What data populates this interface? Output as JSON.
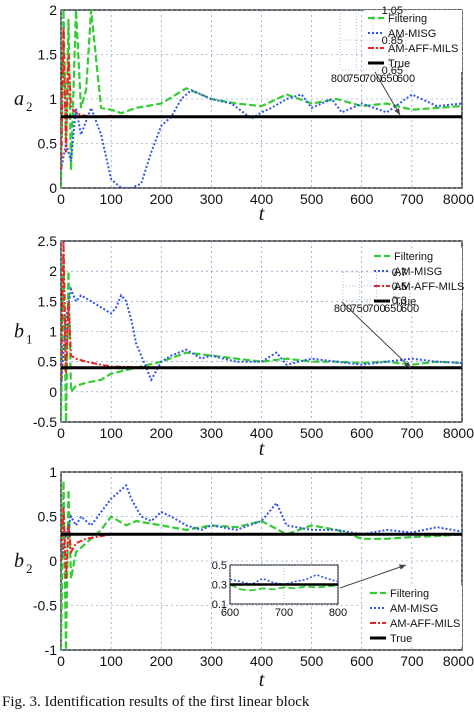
{
  "caption": "Fig. 3. Identification results of the first linear block",
  "colors": {
    "filtering": "#33cc33",
    "am_misg": "#3355ee",
    "am_aff_mils": "#ee2222",
    "true": "#000000",
    "grid": "#6688bb"
  },
  "chart_data": [
    {
      "type": "line",
      "ylabel": "a",
      "ylabel_sub": "2",
      "xlabel": "t",
      "xlim": [
        0,
        800
      ],
      "ylim": [
        0,
        2
      ],
      "xticks": [
        "0",
        "100",
        "200",
        "300",
        "400",
        "500",
        "600",
        "700",
        "8000"
      ],
      "yticks": [
        "0",
        "0.5",
        "1",
        "1.5",
        "2"
      ],
      "legend": [
        "Filtering",
        "AM-MISG",
        "AM-AFF-MILS",
        "True"
      ],
      "true_value": 0.8,
      "series": [
        {
          "name": "Filtering",
          "x": [
            0,
            5,
            10,
            15,
            20,
            30,
            40,
            50,
            60,
            80,
            100,
            120,
            150,
            200,
            250,
            300,
            350,
            400,
            450,
            500,
            550,
            600,
            650,
            700,
            750,
            800
          ],
          "y": [
            0,
            2.0,
            0.5,
            1.9,
            0.2,
            2.0,
            0.9,
            1.1,
            2.0,
            0.9,
            0.88,
            0.84,
            0.9,
            0.95,
            1.12,
            1.0,
            0.95,
            0.92,
            1.05,
            0.95,
            1.0,
            0.92,
            0.95,
            0.88,
            0.9,
            0.92
          ]
        },
        {
          "name": "AM-MISG",
          "x": [
            0,
            10,
            20,
            30,
            40,
            60,
            80,
            100,
            120,
            140,
            160,
            180,
            200,
            220,
            240,
            260,
            300,
            340,
            380,
            400,
            420,
            450,
            480,
            500,
            540,
            560,
            600,
            650,
            700,
            750,
            800
          ],
          "y": [
            0.2,
            0.5,
            0.3,
            0.9,
            0.6,
            0.9,
            0.6,
            0.1,
            0.0,
            0.0,
            0.05,
            0.4,
            0.7,
            0.8,
            1.0,
            1.1,
            1.0,
            0.95,
            0.78,
            0.85,
            0.9,
            1.0,
            1.05,
            0.9,
            1.0,
            0.85,
            0.95,
            0.85,
            1.05,
            0.92,
            0.95
          ]
        },
        {
          "name": "AM-AFF-MILS",
          "x": [
            0,
            5,
            10,
            15,
            20,
            30,
            40,
            60,
            100,
            200,
            300,
            400,
            500,
            600,
            700,
            800
          ],
          "y": [
            0.2,
            1.8,
            0.4,
            1.5,
            0.9,
            0.85,
            0.82,
            0.8,
            0.81,
            0.8,
            0.8,
            0.8,
            0.8,
            0.8,
            0.8,
            0.8
          ]
        },
        {
          "name": "True",
          "x": [
            0,
            800
          ],
          "y": [
            0.8,
            0.8
          ]
        }
      ],
      "inset": {
        "xlim": [
          600,
          800
        ],
        "ylim": [
          0.65,
          1.05
        ],
        "xticks": [
          "600",
          "650",
          "700",
          "750",
          "800"
        ],
        "yticks": [
          "0.65",
          "0.85",
          "1.05"
        ],
        "series": [
          {
            "name": "Filtering",
            "x": [
              600,
              620,
              640,
              660,
              680,
              700,
              720,
              740,
              760,
              780,
              800
            ],
            "y": [
              0.85,
              0.88,
              0.9,
              0.87,
              0.86,
              0.88,
              0.9,
              0.87,
              0.88,
              0.86,
              0.88
            ]
          },
          {
            "name": "AM-MISG",
            "x": [
              600,
              620,
              640,
              660,
              680,
              700,
              720,
              740,
              760,
              780,
              800
            ],
            "y": [
              0.95,
              0.98,
              1.0,
              0.93,
              0.96,
              0.98,
              0.9,
              0.92,
              0.93,
              0.94,
              0.93
            ]
          },
          {
            "name": "AM-AFF-MILS",
            "x": [
              600,
              800
            ],
            "y": [
              0.8,
              0.8
            ]
          },
          {
            "name": "True",
            "x": [
              600,
              800
            ],
            "y": [
              0.8,
              0.8
            ]
          }
        ]
      }
    },
    {
      "type": "line",
      "ylabel": "b",
      "ylabel_sub": "1",
      "xlabel": "t",
      "xlim": [
        0,
        800
      ],
      "ylim": [
        -0.5,
        2.5
      ],
      "xticks": [
        "0",
        "100",
        "200",
        "300",
        "400",
        "500",
        "600",
        "700",
        "8000"
      ],
      "yticks": [
        "-0.5",
        "0",
        "0.5",
        "1",
        "1.5",
        "2",
        "2.5"
      ],
      "legend": [
        "Filtering",
        "AM-MISG",
        "AM-AFF-MILS",
        "True"
      ],
      "true_value": 0.4,
      "series": [
        {
          "name": "Filtering",
          "x": [
            0,
            5,
            10,
            15,
            20,
            30,
            50,
            80,
            100,
            150,
            200,
            250,
            300,
            350,
            400,
            450,
            500,
            550,
            600,
            650,
            700,
            750,
            800
          ],
          "y": [
            -0.5,
            2.3,
            -0.5,
            2.0,
            0.0,
            0.1,
            0.15,
            0.2,
            0.3,
            0.4,
            0.5,
            0.65,
            0.6,
            0.55,
            0.5,
            0.55,
            0.5,
            0.5,
            0.48,
            0.5,
            0.45,
            0.5,
            0.48
          ]
        },
        {
          "name": "AM-MISG",
          "x": [
            0,
            10,
            20,
            30,
            40,
            60,
            80,
            100,
            110,
            120,
            130,
            140,
            150,
            160,
            180,
            200,
            220,
            250,
            280,
            300,
            350,
            400,
            430,
            450,
            500,
            550,
            600,
            650,
            700,
            750,
            800
          ],
          "y": [
            0.1,
            1.2,
            1.7,
            1.5,
            1.6,
            1.5,
            1.4,
            1.3,
            1.4,
            1.6,
            1.5,
            1.2,
            0.8,
            0.6,
            0.2,
            0.5,
            0.6,
            0.7,
            0.55,
            0.6,
            0.5,
            0.5,
            0.65,
            0.45,
            0.55,
            0.5,
            0.45,
            0.5,
            0.55,
            0.5,
            0.48
          ]
        },
        {
          "name": "AM-AFF-MILS",
          "x": [
            0,
            5,
            10,
            15,
            20,
            30,
            50,
            80,
            100,
            150,
            200,
            300,
            400,
            500,
            600,
            700,
            800
          ],
          "y": [
            0.2,
            2.5,
            0.3,
            1.5,
            0.6,
            0.55,
            0.5,
            0.45,
            0.42,
            0.41,
            0.4,
            0.4,
            0.4,
            0.4,
            0.4,
            0.4,
            0.4
          ]
        },
        {
          "name": "True",
          "x": [
            0,
            800
          ],
          "y": [
            0.4,
            0.4
          ]
        }
      ],
      "inset": {
        "xlim": [
          600,
          800
        ],
        "ylim": [
          0.3,
          0.7
        ],
        "xticks": [
          "600",
          "650",
          "700",
          "750",
          "800"
        ],
        "yticks": [
          "0.3",
          "0.5",
          "0.7"
        ],
        "series": [
          {
            "name": "Filtering",
            "x": [
              600,
              620,
              640,
              660,
              680,
              700,
              720,
              740,
              760,
              780,
              800
            ],
            "y": [
              0.52,
              0.48,
              0.47,
              0.5,
              0.48,
              0.45,
              0.5,
              0.47,
              0.48,
              0.5,
              0.52
            ]
          },
          {
            "name": "AM-MISG",
            "x": [
              600,
              620,
              640,
              660,
              680,
              700,
              720,
              740,
              750,
              760,
              780,
              800
            ],
            "y": [
              0.55,
              0.5,
              0.48,
              0.52,
              0.5,
              0.45,
              0.52,
              0.48,
              0.65,
              0.55,
              0.5,
              0.55
            ]
          },
          {
            "name": "AM-AFF-MILS",
            "x": [
              600,
              800
            ],
            "y": [
              0.4,
              0.4
            ]
          },
          {
            "name": "True",
            "x": [
              600,
              800
            ],
            "y": [
              0.4,
              0.4
            ]
          }
        ]
      }
    },
    {
      "type": "line",
      "ylabel": "b",
      "ylabel_sub": "2",
      "xlabel": "t",
      "xlim": [
        0,
        800
      ],
      "ylim": [
        -1,
        1
      ],
      "xticks": [
        "0",
        "100",
        "200",
        "300",
        "400",
        "500",
        "600",
        "700",
        "8000"
      ],
      "yticks": [
        "-1",
        "-0.5",
        "0",
        "0.5",
        "1"
      ],
      "legend": [
        "Filtering",
        "AM-MISG",
        "AM-AFF-MILS",
        "True"
      ],
      "true_value": 0.3,
      "series": [
        {
          "name": "Filtering",
          "x": [
            0,
            5,
            10,
            15,
            20,
            30,
            50,
            80,
            100,
            130,
            150,
            200,
            250,
            300,
            350,
            400,
            450,
            500,
            550,
            600,
            650,
            700,
            750,
            800
          ],
          "y": [
            -1.0,
            0.9,
            -1.0,
            0.8,
            -0.2,
            0.1,
            0.2,
            0.35,
            0.5,
            0.4,
            0.45,
            0.4,
            0.35,
            0.4,
            0.38,
            0.45,
            0.3,
            0.4,
            0.35,
            0.25,
            0.25,
            0.27,
            0.28,
            0.3
          ]
        },
        {
          "name": "AM-MISG",
          "x": [
            0,
            10,
            20,
            30,
            40,
            60,
            80,
            100,
            120,
            130,
            140,
            160,
            180,
            200,
            220,
            250,
            280,
            300,
            350,
            400,
            430,
            450,
            500,
            550,
            600,
            650,
            700,
            750,
            800
          ],
          "y": [
            0.0,
            0.3,
            0.5,
            0.4,
            0.5,
            0.4,
            0.55,
            0.7,
            0.8,
            0.85,
            0.7,
            0.5,
            0.45,
            0.55,
            0.5,
            0.4,
            0.35,
            0.4,
            0.35,
            0.45,
            0.65,
            0.4,
            0.35,
            0.35,
            0.3,
            0.35,
            0.32,
            0.38,
            0.33
          ]
        },
        {
          "name": "AM-AFF-MILS",
          "x": [
            0,
            5,
            10,
            15,
            20,
            30,
            50,
            80,
            100,
            200,
            300,
            400,
            500,
            600,
            700,
            800
          ],
          "y": [
            0.0,
            0.6,
            -0.2,
            0.4,
            0.1,
            0.2,
            0.25,
            0.28,
            0.3,
            0.3,
            0.3,
            0.3,
            0.3,
            0.3,
            0.3,
            0.3
          ]
        },
        {
          "name": "True",
          "x": [
            0,
            800
          ],
          "y": [
            0.3,
            0.3
          ]
        }
      ],
      "inset": {
        "xlim": [
          600,
          800
        ],
        "ylim": [
          0.1,
          0.5
        ],
        "xticks": [
          "600",
          "700",
          "800"
        ],
        "yticks": [
          "0.1",
          "0.3",
          "0.5"
        ],
        "series": [
          {
            "name": "Filtering",
            "x": [
              600,
              620,
              640,
              660,
              680,
              700,
              720,
              740,
              760,
              780,
              800
            ],
            "y": [
              0.3,
              0.25,
              0.24,
              0.26,
              0.25,
              0.27,
              0.26,
              0.28,
              0.27,
              0.28,
              0.29
            ]
          },
          {
            "name": "AM-MISG",
            "x": [
              600,
              620,
              640,
              660,
              680,
              700,
              720,
              740,
              760,
              780,
              800
            ],
            "y": [
              0.35,
              0.33,
              0.3,
              0.36,
              0.32,
              0.3,
              0.33,
              0.35,
              0.4,
              0.36,
              0.33
            ]
          },
          {
            "name": "AM-AFF-MILS",
            "x": [
              600,
              800
            ],
            "y": [
              0.3,
              0.3
            ]
          },
          {
            "name": "True",
            "x": [
              600,
              800
            ],
            "y": [
              0.3,
              0.3
            ]
          }
        ]
      }
    }
  ]
}
